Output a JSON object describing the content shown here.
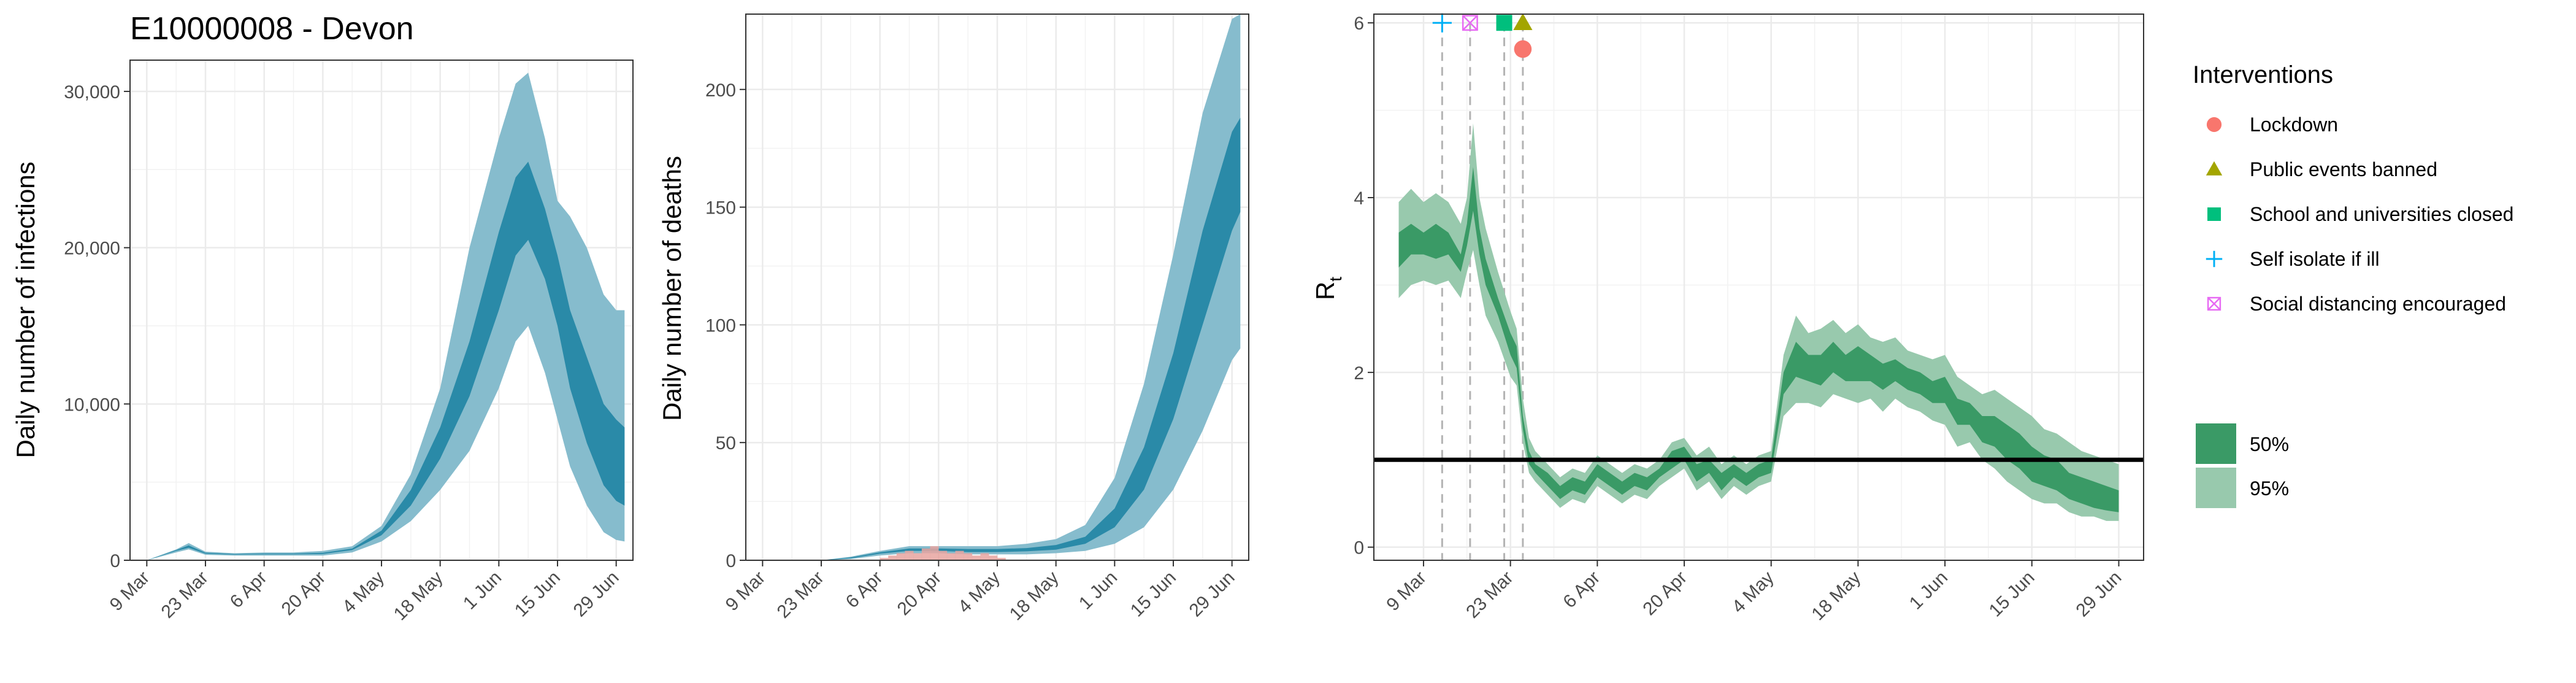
{
  "colors": {
    "infections_inner": "#2a8aa8",
    "infections_outer": "#86bccd",
    "rt_inner": "#3a9a66",
    "rt_outer": "#98c9ad",
    "lockdown": "#f8766d",
    "public_events": "#a3a500",
    "school": "#00bf7d",
    "self_isolate": "#00b0f6",
    "social_distancing": "#e76bf3",
    "grid": "#ebebeb",
    "panel_border": "#333333"
  },
  "chart_data": [
    {
      "type": "area",
      "title": "E10000008 - Devon",
      "ylabel": "Daily number of infections",
      "xlabel": "",
      "x_ticks": [
        "9 Mar",
        "23 Mar",
        "6 Apr",
        "20 Apr",
        "4 May",
        "18 May",
        "1 Jun",
        "15 Jun",
        "29 Jun"
      ],
      "x_tick_days": [
        0,
        14,
        28,
        42,
        56,
        70,
        84,
        98,
        112
      ],
      "y_ticks": [
        0,
        10000,
        20000,
        30000
      ],
      "y_tick_labels": [
        "0",
        "10,000",
        "20,000",
        "30,000"
      ],
      "ylim": [
        0,
        32000
      ],
      "xlim_days": [
        -4,
        116
      ],
      "grid": true,
      "series": [
        {
          "x": [
            0,
            7,
            10,
            14,
            21,
            28,
            35,
            42,
            49,
            56,
            63,
            70,
            77,
            84,
            88,
            91,
            95,
            98,
            101,
            105,
            109,
            112,
            114
          ],
          "lower": [
            0,
            500,
            700,
            350,
            300,
            300,
            300,
            300,
            500,
            1200,
            2500,
            4500,
            7000,
            11000,
            14000,
            15000,
            12000,
            9000,
            6000,
            3500,
            1800,
            1300,
            1200
          ],
          "upper": [
            0,
            700,
            1100,
            550,
            450,
            500,
            500,
            600,
            900,
            2200,
            5500,
            11000,
            20000,
            27000,
            30500,
            31200,
            27000,
            23000,
            22000,
            20000,
            17000,
            16000,
            16000
          ],
          "lower_50": [
            0,
            600,
            800,
            420,
            360,
            380,
            380,
            400,
            650,
            1600,
            3500,
            6500,
            10500,
            16000,
            19500,
            20500,
            18000,
            15000,
            11000,
            7500,
            4800,
            3800,
            3500
          ],
          "upper_50": [
            0,
            650,
            950,
            480,
            400,
            430,
            430,
            480,
            750,
            1900,
            4500,
            8500,
            14000,
            21000,
            24500,
            25500,
            22500,
            19500,
            16000,
            13000,
            10000,
            9000,
            8500
          ]
        }
      ]
    },
    {
      "type": "area",
      "title": "",
      "ylabel": "Daily number of deaths",
      "xlabel": "",
      "x_ticks": [
        "9 Mar",
        "23 Mar",
        "6 Apr",
        "20 Apr",
        "4 May",
        "18 May",
        "1 Jun",
        "15 Jun",
        "29 Jun"
      ],
      "x_tick_days": [
        0,
        14,
        28,
        42,
        56,
        70,
        84,
        98,
        112
      ],
      "y_ticks": [
        0,
        50,
        100,
        150,
        200
      ],
      "y_tick_labels": [
        "0",
        "50",
        "100",
        "150",
        "200"
      ],
      "ylim": [
        0,
        232
      ],
      "xlim_days": [
        -4,
        116
      ],
      "grid": true,
      "series": [
        {
          "x": [
            0,
            7,
            14,
            21,
            28,
            35,
            42,
            49,
            56,
            63,
            70,
            77,
            84,
            91,
            98,
            105,
            112,
            114
          ],
          "lower": [
            0,
            0,
            0,
            0.5,
            2,
            3,
            3,
            2.5,
            2.5,
            2.5,
            3,
            4,
            7,
            14,
            30,
            55,
            85,
            90
          ],
          "upper": [
            0,
            0,
            0,
            1.5,
            4,
            6,
            6,
            6,
            6,
            7,
            9,
            15,
            35,
            75,
            130,
            190,
            230,
            232
          ],
          "lower_50": [
            0,
            0,
            0,
            0.8,
            2.8,
            4,
            4,
            3.5,
            3.5,
            3.8,
            4.5,
            7,
            14,
            30,
            60,
            100,
            140,
            148
          ],
          "upper_50": [
            0,
            0,
            0,
            1.2,
            3.4,
            5,
            5,
            4.8,
            4.8,
            5.2,
            6.5,
            10,
            22,
            48,
            88,
            140,
            182,
            188
          ]
        }
      ],
      "observed_deaths": {
        "x": [
          29,
          31,
          33,
          35,
          37,
          39,
          41,
          43,
          45,
          47,
          49,
          51,
          53,
          55,
          57
        ],
        "values": [
          1,
          2,
          3,
          4,
          3,
          5,
          6,
          4,
          3,
          4,
          3,
          2,
          3,
          2,
          1
        ]
      }
    },
    {
      "type": "area",
      "title": "",
      "ylabel": "R",
      "ylabel_sub": "t",
      "xlabel": "",
      "x_ticks": [
        "9 Mar",
        "23 Mar",
        "6 Apr",
        "20 Apr",
        "4 May",
        "18 May",
        "1 Jun",
        "15 Jun",
        "29 Jun"
      ],
      "x_tick_days": [
        0,
        14,
        28,
        42,
        56,
        70,
        84,
        98,
        112
      ],
      "y_ticks": [
        0,
        2,
        4,
        6
      ],
      "y_tick_labels": [
        "0",
        "2",
        "4",
        "6"
      ],
      "ylim": [
        -0.15,
        6.1
      ],
      "xlim_days": [
        -8,
        116
      ],
      "grid": true,
      "reference_line": 1,
      "series": [
        {
          "x": [
            -4,
            -2,
            0,
            2,
            4,
            6,
            7,
            8,
            9,
            10,
            12,
            14,
            15,
            16,
            17,
            18,
            20,
            22,
            24,
            26,
            28,
            30,
            32,
            34,
            36,
            38,
            40,
            42,
            44,
            46,
            48,
            50,
            52,
            54,
            56,
            58,
            60,
            62,
            64,
            66,
            68,
            70,
            72,
            74,
            76,
            78,
            80,
            82,
            84,
            86,
            88,
            90,
            92,
            94,
            96,
            98,
            100,
            102,
            104,
            106,
            108,
            110,
            112
          ],
          "lower": [
            2.85,
            3.0,
            3.05,
            3.0,
            3.05,
            2.85,
            3.15,
            3.4,
            3.0,
            2.65,
            2.35,
            1.95,
            1.85,
            1.2,
            0.85,
            0.75,
            0.6,
            0.45,
            0.55,
            0.5,
            0.7,
            0.6,
            0.5,
            0.6,
            0.55,
            0.7,
            0.8,
            0.9,
            0.65,
            0.75,
            0.55,
            0.7,
            0.6,
            0.7,
            0.75,
            1.5,
            1.65,
            1.65,
            1.6,
            1.75,
            1.7,
            1.65,
            1.7,
            1.55,
            1.7,
            1.6,
            1.55,
            1.45,
            1.4,
            1.15,
            1.2,
            1.0,
            0.9,
            0.75,
            0.65,
            0.55,
            0.5,
            0.5,
            0.4,
            0.35,
            0.35,
            0.3,
            0.3
          ],
          "upper": [
            3.95,
            4.1,
            3.95,
            4.05,
            3.95,
            3.7,
            4.0,
            4.85,
            4.0,
            3.65,
            3.15,
            2.7,
            2.5,
            1.7,
            1.25,
            1.1,
            0.95,
            0.8,
            0.9,
            0.85,
            1.05,
            0.95,
            0.85,
            0.95,
            0.9,
            1.0,
            1.2,
            1.25,
            1.05,
            1.15,
            0.95,
            1.05,
            0.95,
            1.05,
            1.1,
            2.2,
            2.65,
            2.45,
            2.5,
            2.6,
            2.45,
            2.55,
            2.4,
            2.35,
            2.4,
            2.25,
            2.2,
            2.15,
            2.2,
            1.95,
            1.85,
            1.75,
            1.8,
            1.7,
            1.6,
            1.5,
            1.35,
            1.3,
            1.2,
            1.1,
            1.05,
            1.0,
            0.95
          ],
          "lower_50": [
            3.2,
            3.35,
            3.35,
            3.3,
            3.35,
            3.15,
            3.45,
            3.85,
            3.35,
            3.0,
            2.65,
            2.2,
            2.05,
            1.35,
            0.95,
            0.85,
            0.7,
            0.55,
            0.65,
            0.6,
            0.8,
            0.7,
            0.6,
            0.7,
            0.65,
            0.8,
            0.9,
            1.0,
            0.75,
            0.85,
            0.65,
            0.8,
            0.7,
            0.8,
            0.85,
            1.75,
            1.95,
            1.9,
            1.85,
            2.0,
            1.9,
            1.9,
            1.9,
            1.8,
            1.9,
            1.8,
            1.75,
            1.65,
            1.65,
            1.4,
            1.4,
            1.2,
            1.15,
            1.0,
            0.9,
            0.75,
            0.7,
            0.65,
            0.55,
            0.5,
            0.45,
            0.42,
            0.4
          ],
          "upper_50": [
            3.6,
            3.7,
            3.6,
            3.7,
            3.6,
            3.35,
            3.7,
            4.35,
            3.65,
            3.3,
            2.85,
            2.45,
            2.3,
            1.5,
            1.1,
            0.95,
            0.85,
            0.7,
            0.8,
            0.75,
            0.95,
            0.85,
            0.75,
            0.85,
            0.8,
            0.9,
            1.1,
            1.15,
            0.95,
            1.0,
            0.85,
            0.95,
            0.85,
            0.95,
            1.0,
            2.0,
            2.35,
            2.2,
            2.2,
            2.35,
            2.2,
            2.3,
            2.2,
            2.1,
            2.15,
            2.05,
            2.0,
            1.9,
            1.95,
            1.7,
            1.65,
            1.5,
            1.5,
            1.4,
            1.3,
            1.15,
            1.05,
            1.0,
            0.85,
            0.8,
            0.75,
            0.7,
            0.65
          ]
        }
      ],
      "interventions": [
        {
          "name": "Self isolate if ill",
          "day": 3,
          "shape": "plus",
          "y": 6.0
        },
        {
          "name": "Social distancing encouraged",
          "day": 7.5,
          "shape": "boxx",
          "y": 6.0
        },
        {
          "name": "School and universities closed",
          "day": 13,
          "shape": "square",
          "y": 6.0
        },
        {
          "name": "Public events banned",
          "day": 16,
          "shape": "triangle",
          "y": 6.0
        },
        {
          "name": "Lockdown",
          "day": 16,
          "shape": "circle",
          "y": 5.7
        }
      ]
    }
  ],
  "legend": {
    "title": "Interventions",
    "items": [
      {
        "label": "Lockdown",
        "shape": "circle"
      },
      {
        "label": "Public events banned",
        "shape": "triangle"
      },
      {
        "label": "School and universities closed",
        "shape": "square"
      },
      {
        "label": "Self isolate if ill",
        "shape": "plus"
      },
      {
        "label": "Social distancing encouraged",
        "shape": "boxx"
      }
    ],
    "bands": [
      {
        "label": "50%"
      },
      {
        "label": "95%"
      }
    ]
  }
}
